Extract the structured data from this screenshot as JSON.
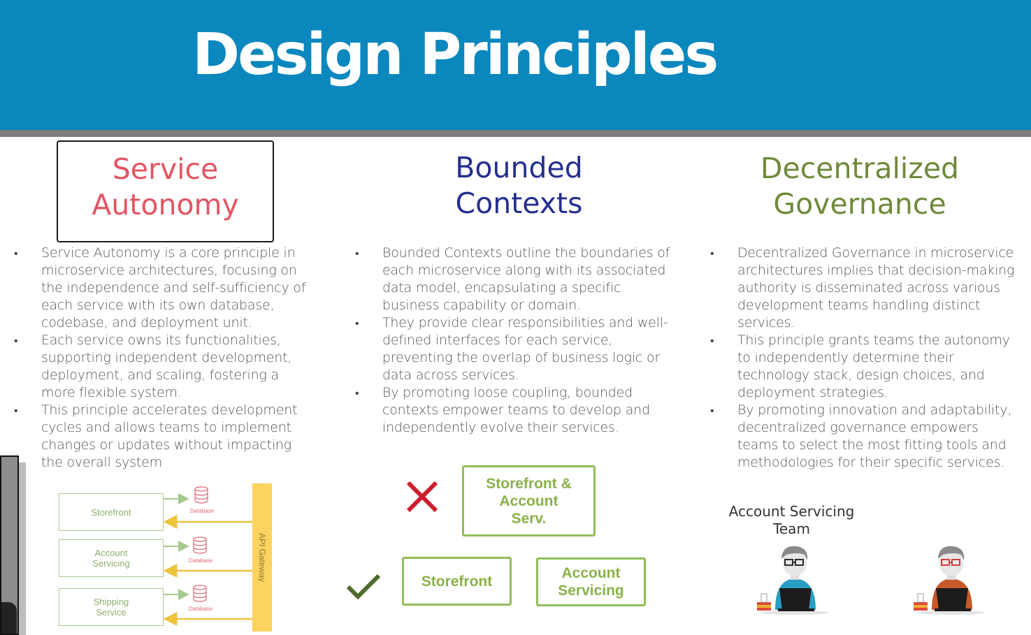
{
  "header": {
    "title": "Design Principles",
    "bg_color": "#0a87bd"
  },
  "columns": [
    {
      "heading": [
        "Service",
        "Autonomy"
      ],
      "color": "#e25563",
      "bullets": [
        "Service Autonomy is a core principle in microservice architectures, focusing on the independence and self-sufficiency of each service with its own database, codebase, and deployment unit.",
        "Each service owns its functionalities, supporting independent development, deployment, and scaling, fostering a more flexible system.",
        "This principle accelerates development cycles and allows teams to implement changes or updates without impacting the overall system"
      ]
    },
    {
      "heading": [
        "Bounded",
        "Contexts"
      ],
      "color": "#252f8e",
      "bullets": [
        "Bounded Contexts outline the boundaries of each microservice along with its associated data model, encapsulating a specific business capability or domain.",
        "They provide clear responsibilities and well-defined interfaces for each service, preventing the overlap of business logic or data across services.",
        "By promoting loose coupling, bounded contexts empower teams to develop and independently evolve their services."
      ]
    },
    {
      "heading": [
        "Decentralized",
        "Governance"
      ],
      "color": "#6f8a3a",
      "bullets": [
        "Decentralized Governance in microservice architectures implies that decision-making authority is disseminated across various development teams handling distinct services.",
        "This principle grants teams the autonomy to independently determine their technology stack, design choices, and deployment strategies.",
        "By promoting innovation and adaptability, decentralized governance empowers teams to select the most fitting tools and methodologies for their specific services."
      ]
    }
  ],
  "autonomy_diagram": {
    "services": [
      {
        "label": [
          "Storefront"
        ]
      },
      {
        "label": [
          "Account",
          "Servicing"
        ]
      },
      {
        "label": [
          "Shipping",
          "Service"
        ]
      }
    ],
    "database_label": "Database",
    "gateway_label": "API Gateway"
  },
  "bounded_diagram": {
    "wrong_box": [
      "Storefront &",
      "Account",
      "Serv."
    ],
    "right_boxes": [
      {
        "label": [
          "Storefront"
        ]
      },
      {
        "label": [
          "Account",
          "Servicing"
        ]
      }
    ],
    "wrong_icon": "cross-icon",
    "right_icon": "check-icon"
  },
  "governance_diagram": {
    "team_label": [
      "Account Servicing",
      "Team"
    ],
    "people": [
      {
        "shirt_color": "#2a9dc4",
        "glasses_color": "#2b2b2b"
      },
      {
        "shirt_color": "#c85a2a",
        "glasses_color": "#d04040"
      }
    ]
  }
}
